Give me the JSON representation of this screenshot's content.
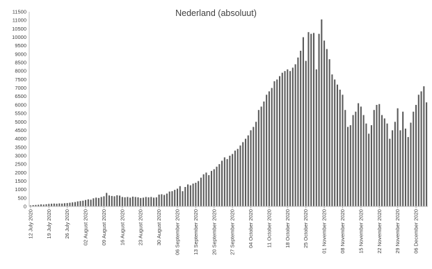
{
  "chart_data": {
    "type": "bar",
    "title": "Nederland (absoluut)",
    "xlabel": "",
    "ylabel": "",
    "ylim": [
      0,
      11500
    ],
    "y_ticks": [
      0,
      500,
      1000,
      1500,
      2000,
      2500,
      3000,
      3500,
      4000,
      4500,
      5000,
      5500,
      6000,
      6500,
      7000,
      7500,
      8000,
      8500,
      9000,
      9500,
      10000,
      10500,
      11000,
      11500
    ],
    "y_tick_labels": [
      "0",
      "500",
      "1000",
      "1500",
      "2000",
      "2500",
      "3000",
      "3500",
      "4000",
      "4500",
      "5000",
      "5500",
      "6000",
      "6500",
      "7000",
      "7500",
      "8000",
      "8500",
      "9000",
      "9500",
      "10000",
      "10500",
      "11000",
      "11500"
    ],
    "grid": false,
    "legend": "none",
    "bar_color": "#5a5a5a",
    "x_tick_labels": [
      {
        "day": 0,
        "label": "12 July 2020"
      },
      {
        "day": 7,
        "label": "19 July 2020"
      },
      {
        "day": 14,
        "label": "26 July 2020"
      },
      {
        "day": 21,
        "label": "02 August 2020"
      },
      {
        "day": 28,
        "label": "09 August 2020"
      },
      {
        "day": 35,
        "label": "16 August 2020"
      },
      {
        "day": 42,
        "label": "23 August 2020"
      },
      {
        "day": 49,
        "label": "30 August 2020"
      },
      {
        "day": 56,
        "label": "06 September 2020"
      },
      {
        "day": 63,
        "label": "13 September 2020"
      },
      {
        "day": 70,
        "label": "20 September 2020"
      },
      {
        "day": 77,
        "label": "27 September 2020"
      },
      {
        "day": 84,
        "label": "04 October 2020"
      },
      {
        "day": 91,
        "label": "11 October 2020"
      },
      {
        "day": 98,
        "label": "18 October 2020"
      },
      {
        "day": 105,
        "label": "25 October 2020"
      },
      {
        "day": 112,
        "label": "01 November 2020"
      },
      {
        "day": 119,
        "label": "08 November 2020"
      },
      {
        "day": 126,
        "label": "15 November 2020"
      },
      {
        "day": 133,
        "label": "22 November 2020"
      },
      {
        "day": 140,
        "label": "29 November 2020"
      },
      {
        "day": 147,
        "label": "06 December 2020"
      }
    ],
    "values": [
      60,
      80,
      90,
      100,
      120,
      110,
      130,
      150,
      160,
      170,
      160,
      180,
      170,
      190,
      200,
      220,
      240,
      260,
      300,
      320,
      340,
      380,
      420,
      400,
      480,
      520,
      500,
      560,
      600,
      800,
      650,
      620,
      600,
      660,
      640,
      560,
      540,
      560,
      520,
      580,
      560,
      540,
      500,
      520,
      560,
      540,
      560,
      520,
      540,
      700,
      720,
      680,
      760,
      880,
      900,
      980,
      1050,
      1200,
      900,
      1150,
      1300,
      1250,
      1350,
      1400,
      1500,
      1700,
      1900,
      2000,
      1850,
      2100,
      2200,
      2350,
      2500,
      2700,
      2900,
      2800,
      3000,
      3100,
      3300,
      3400,
      3600,
      3800,
      4000,
      4200,
      4500,
      4700,
      5000,
      5700,
      5900,
      6200,
      6600,
      6800,
      7000,
      7400,
      7500,
      7700,
      7900,
      8000,
      8100,
      8000,
      8200,
      8400,
      8800,
      9200,
      10000,
      8600,
      10300,
      10200,
      10250,
      8100,
      10200,
      11050,
      9800,
      9300,
      8700,
      7800,
      7500,
      7200,
      6900,
      6600,
      5700,
      4700,
      4800,
      5400,
      5600,
      6100,
      5900,
      5400,
      4900,
      4300,
      4800,
      5700,
      6000,
      6050,
      5400,
      5200,
      4900,
      4000,
      4500,
      5000,
      5800,
      4500,
      5600,
      4600,
      4100,
      4950,
      5600,
      6000,
      6600,
      6800,
      7100,
      6150
    ]
  }
}
